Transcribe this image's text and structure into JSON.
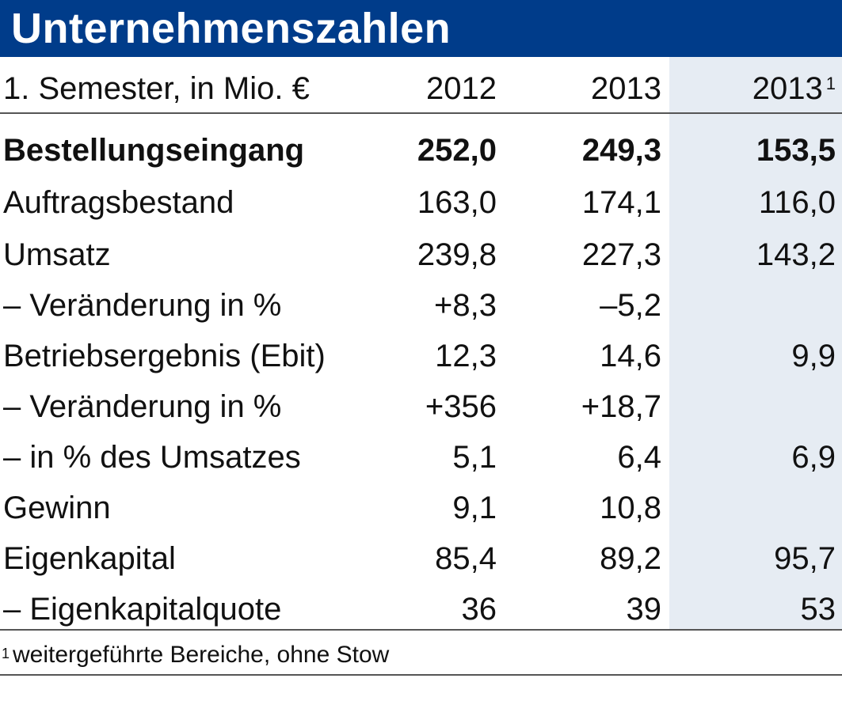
{
  "title": "Unternehmenszahlen",
  "header": {
    "label": "1. Semester, in Mio. €",
    "col1": "2012",
    "col2": "2013",
    "col3": "2013",
    "col3_sup": "1"
  },
  "rows": [
    {
      "label": "Bestellungseingang",
      "v2012": "252,0",
      "v2013": "249,3",
      "v2013b": "153,5",
      "bold": true
    },
    {
      "label": "Auftragsbestand",
      "v2012": "163,0",
      "v2013": "174,1",
      "v2013b": "116,0"
    },
    {
      "label": "Umsatz",
      "v2012": "239,8",
      "v2013": "227,3",
      "v2013b": "143,2"
    },
    {
      "label": "– Veränderung in %",
      "v2012": "+8,3",
      "v2013": "–5,2",
      "v2013b": ""
    },
    {
      "label": "Betriebsergebnis (Ebit)",
      "v2012": "12,3",
      "v2013": "14,6",
      "v2013b": "9,9"
    },
    {
      "label": "– Veränderung in %",
      "v2012": "+356",
      "v2013": "+18,7",
      "v2013b": ""
    },
    {
      "label": "– in % des Umsatzes",
      "v2012": "5,1",
      "v2013": "6,4",
      "v2013b": "6,9"
    },
    {
      "label": "Gewinn",
      "v2012": "9,1",
      "v2013": "10,8",
      "v2013b": ""
    },
    {
      "label": "Eigenkapital",
      "v2012": "85,4",
      "v2013": "89,2",
      "v2013b": "95,7"
    },
    {
      "label": "– Eigenkapitalquote",
      "v2012": "36",
      "v2013": "39",
      "v2013b": "53"
    }
  ],
  "footnote": {
    "marker": "1",
    "text": "weitergeführte Bereiche, ohne Stow"
  },
  "colors": {
    "title_bg": "#003c8a",
    "highlight_column_bg": "#e6ecf3"
  }
}
